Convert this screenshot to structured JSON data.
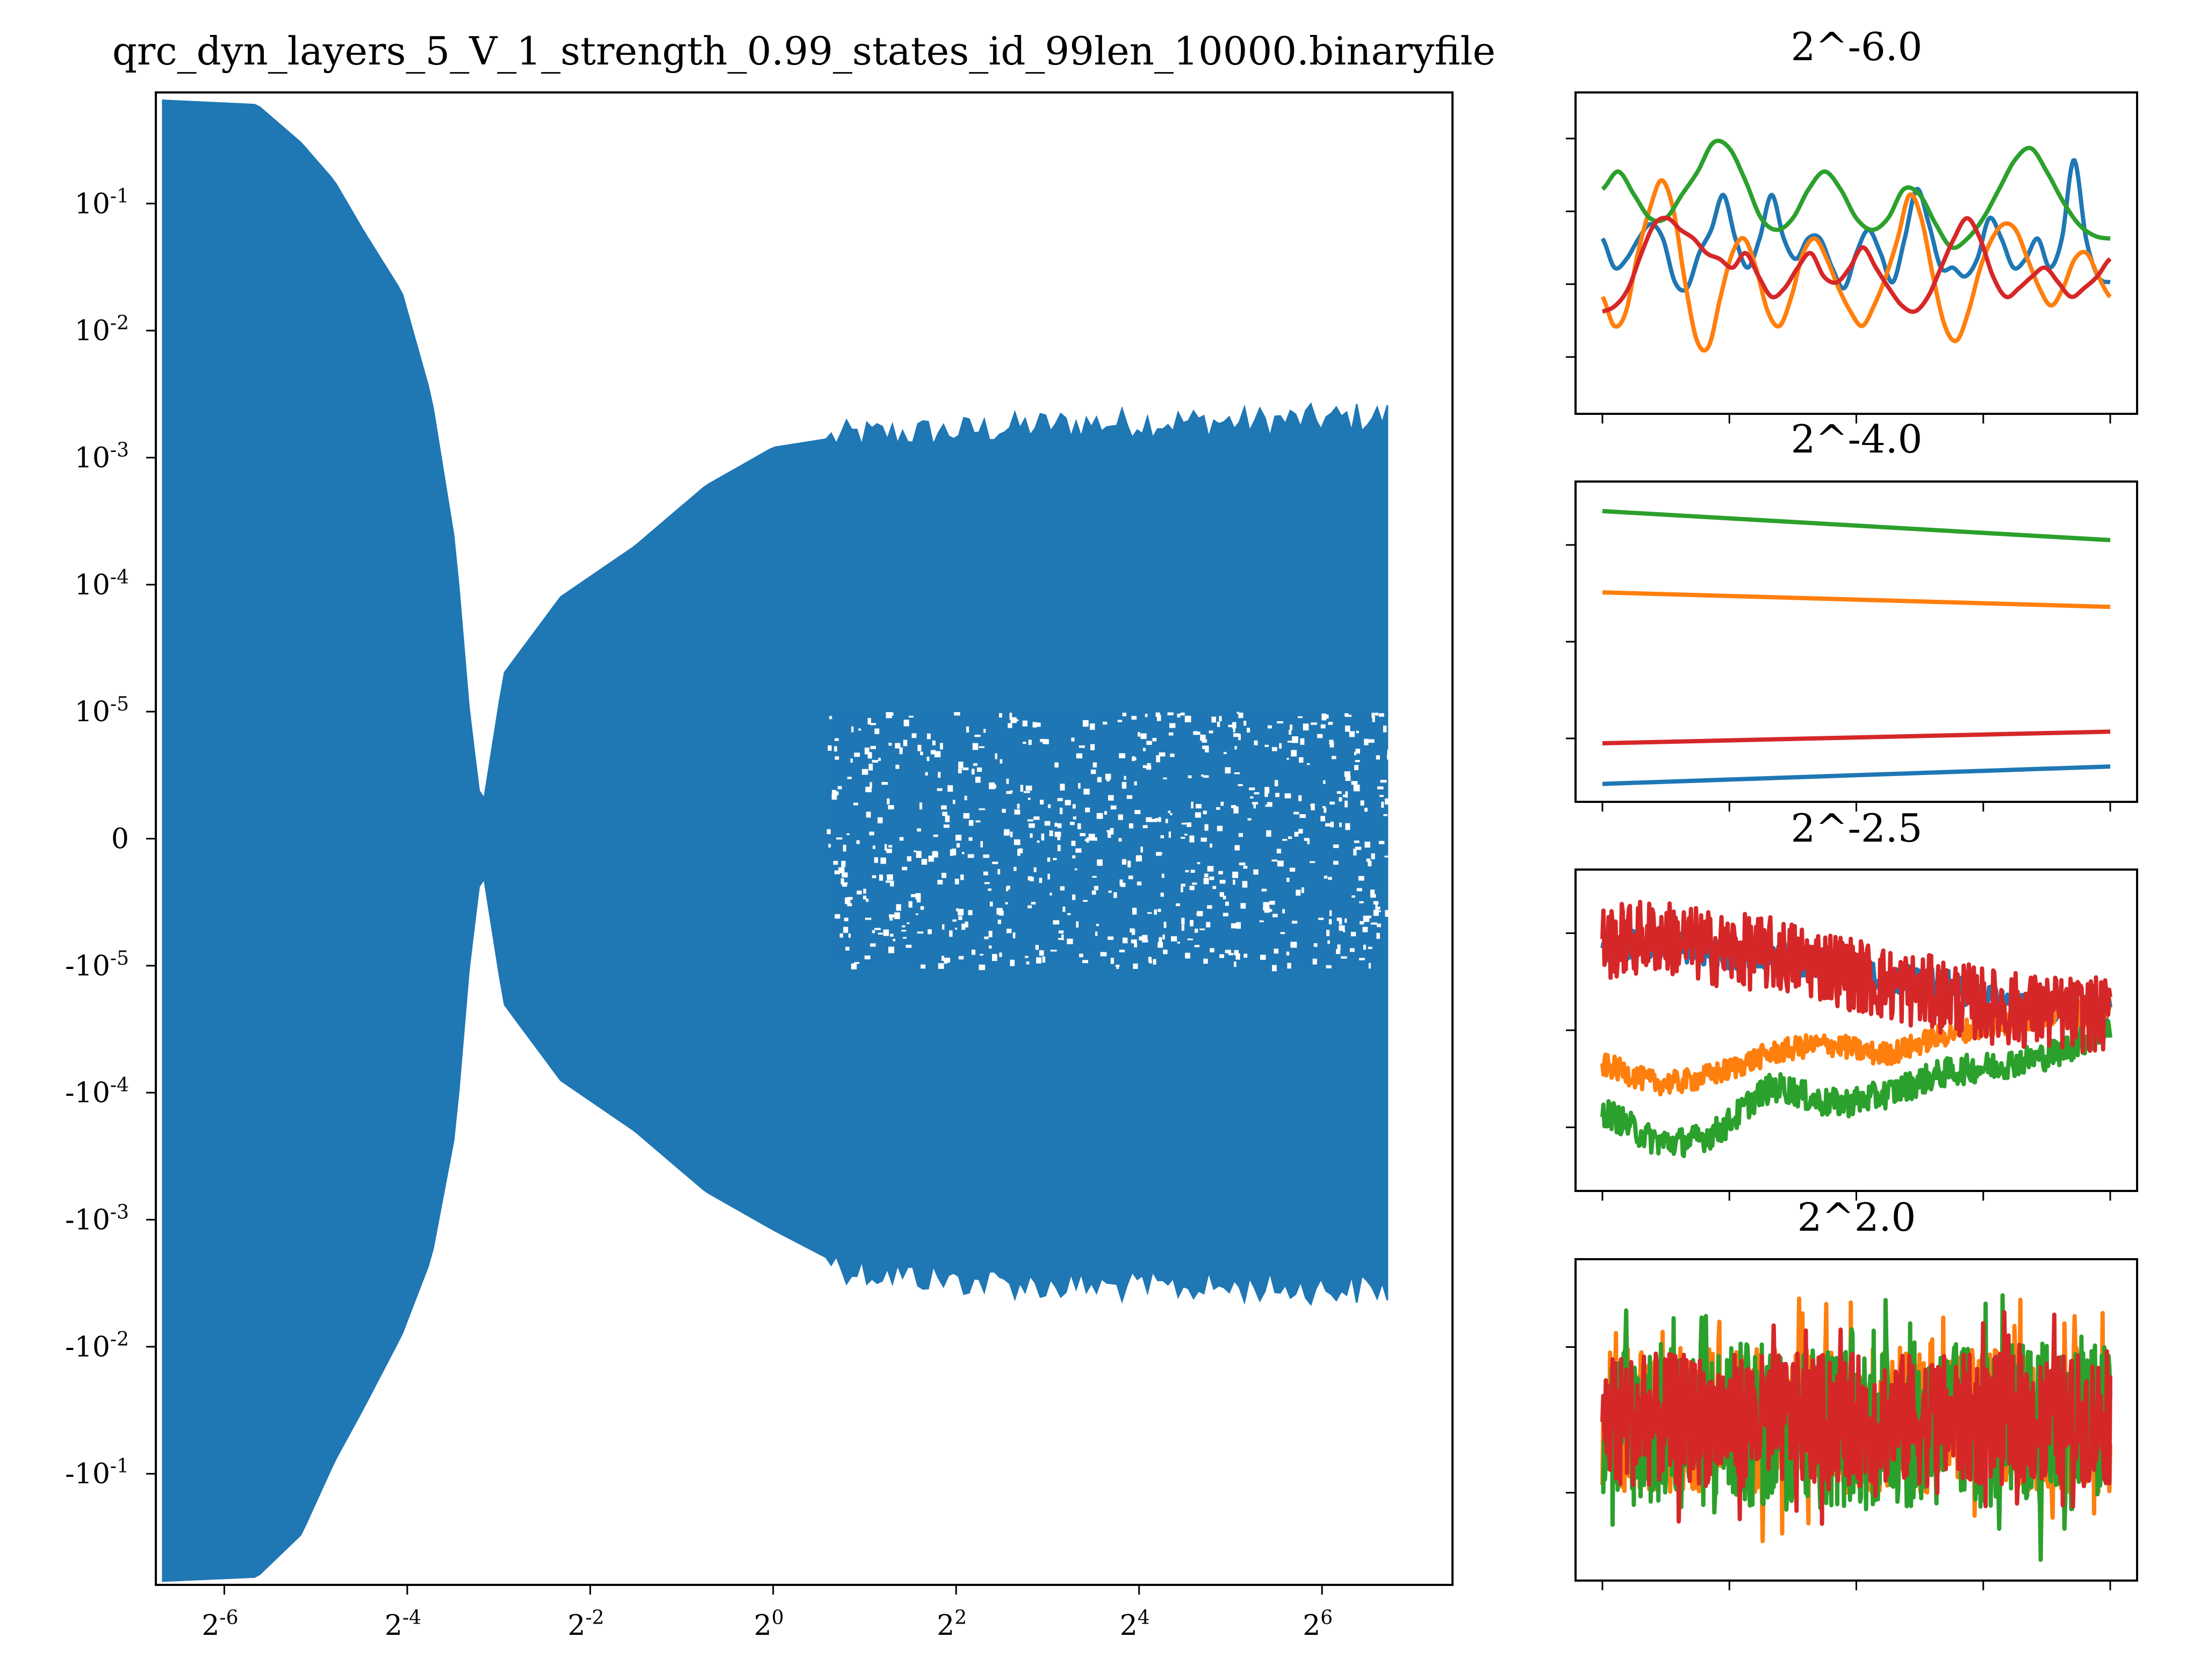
{
  "colors": {
    "blue": "#1f77b4",
    "orange": "#ff7f0e",
    "green": "#2ca02c",
    "red": "#d62728",
    "axes": "#000000",
    "background": "#ffffff"
  },
  "chart_data": [
    {
      "id": "main",
      "type": "scatter",
      "title": "qrc_dyn_layers_5_V_1_strength_0.99_states_id_99len_10000.binaryfile",
      "xlabel": "",
      "ylabel": "",
      "xscale": "log2",
      "yscale": "symlog",
      "x_ticks": [
        {
          "base": "2",
          "exp": "-6",
          "value": 0.015625
        },
        {
          "base": "2",
          "exp": "-4",
          "value": 0.0625
        },
        {
          "base": "2",
          "exp": "-2",
          "value": 0.25
        },
        {
          "base": "2",
          "exp": "0",
          "value": 1
        },
        {
          "base": "2",
          "exp": "2",
          "value": 4
        },
        {
          "base": "2",
          "exp": "4",
          "value": 16
        },
        {
          "base": "2",
          "exp": "6",
          "value": 64
        }
      ],
      "y_ticks": [
        {
          "base": "10",
          "exp": "-1",
          "value": 0.1
        },
        {
          "base": "10",
          "exp": "-2",
          "value": 0.01
        },
        {
          "base": "10",
          "exp": "-3",
          "value": 0.001
        },
        {
          "base": "10",
          "exp": "-4",
          "value": 0.0001
        },
        {
          "base": "10",
          "exp": "-5",
          "value": 1e-05
        },
        {
          "base": "",
          "exp": "",
          "label": "0",
          "value": 0
        },
        {
          "base": "-10",
          "exp": "-5",
          "value": -1e-05
        },
        {
          "base": "-10",
          "exp": "-4",
          "value": -0.0001
        },
        {
          "base": "-10",
          "exp": "-3",
          "value": -0.001
        },
        {
          "base": "-10",
          "exp": "-2",
          "value": -0.01
        },
        {
          "base": "-10",
          "exp": "-1",
          "value": -0.1
        }
      ],
      "xlim": [
        0.0093,
        172
      ],
      "ylim": [
        -0.75,
        0.75
      ],
      "series": [
        {
          "color": "blue",
          "envelope_upper": [
            [
              0.0098,
              0.65
            ],
            [
              0.02,
              0.6
            ],
            [
              0.028,
              0.3
            ],
            [
              0.036,
              0.15
            ],
            [
              0.045,
              0.06
            ],
            [
              0.06,
              0.02
            ],
            [
              0.075,
              0.003
            ],
            [
              0.09,
              0.0002
            ],
            [
              0.1,
              1e-05
            ],
            [
              0.11,
              2e-06
            ],
            [
              0.13,
              2e-05
            ],
            [
              0.2,
              8e-05
            ],
            [
              0.35,
              0.0002
            ],
            [
              0.6,
              0.0006
            ],
            [
              1.0,
              0.0012
            ],
            [
              1.8,
              0.0015
            ],
            [
              4,
              0.0016
            ],
            [
              8,
              0.0018
            ],
            [
              16,
              0.0019
            ],
            [
              32,
              0.0019
            ],
            [
              64,
              0.002
            ],
            [
              105,
              0.0021
            ]
          ],
          "envelope_lower": [
            [
              0.0098,
              -0.7
            ],
            [
              0.02,
              -0.65
            ],
            [
              0.028,
              -0.3
            ],
            [
              0.036,
              -0.08
            ],
            [
              0.045,
              -0.03
            ],
            [
              0.06,
              -0.008
            ],
            [
              0.075,
              -0.002
            ],
            [
              0.09,
              -0.0002
            ],
            [
              0.1,
              -1e-05
            ],
            [
              0.11,
              -2e-06
            ],
            [
              0.13,
              -2e-05
            ],
            [
              0.2,
              -8e-05
            ],
            [
              0.35,
              -0.0002
            ],
            [
              0.6,
              -0.0006
            ],
            [
              1.0,
              -0.0012
            ],
            [
              1.8,
              -0.0025
            ],
            [
              4,
              -0.003
            ],
            [
              8,
              -0.0033
            ],
            [
              16,
              -0.0034
            ],
            [
              32,
              -0.0034
            ],
            [
              64,
              -0.0035
            ],
            [
              105,
              -0.0035
            ]
          ],
          "inner_gap": {
            "x_from": 1.5,
            "x_to": 105,
            "y_range": [
              -1e-05,
              1e-05
            ]
          }
        }
      ]
    },
    {
      "id": "panel1",
      "type": "line",
      "title": "2^-6.0",
      "xlabel": "",
      "ylabel": "",
      "series": [
        {
          "color": "blue",
          "values": [
            0.55,
            0.45,
            0.48,
            0.55,
            0.6,
            0.55,
            0.4,
            0.38,
            0.5,
            0.58,
            0.7,
            0.55,
            0.45,
            0.55,
            0.7,
            0.55,
            0.48,
            0.55,
            0.55,
            0.45,
            0.38,
            0.5,
            0.58,
            0.5,
            0.4,
            0.55,
            0.72,
            0.6,
            0.45,
            0.45,
            0.42,
            0.48,
            0.62,
            0.55,
            0.45,
            0.48,
            0.55,
            0.45,
            0.55,
            0.82,
            0.55,
            0.42,
            0.4
          ]
        },
        {
          "color": "orange",
          "values": [
            0.35,
            0.25,
            0.3,
            0.5,
            0.65,
            0.75,
            0.65,
            0.4,
            0.2,
            0.18,
            0.35,
            0.5,
            0.55,
            0.45,
            0.3,
            0.25,
            0.35,
            0.5,
            0.55,
            0.48,
            0.38,
            0.3,
            0.25,
            0.32,
            0.42,
            0.55,
            0.7,
            0.62,
            0.42,
            0.25,
            0.2,
            0.3,
            0.45,
            0.55,
            0.6,
            0.58,
            0.48,
            0.38,
            0.32,
            0.38,
            0.48,
            0.5,
            0.42,
            0.35
          ]
        },
        {
          "color": "green",
          "values": [
            0.72,
            0.78,
            0.7,
            0.62,
            0.62,
            0.7,
            0.78,
            0.88,
            0.86,
            0.75,
            0.62,
            0.58,
            0.62,
            0.72,
            0.78,
            0.72,
            0.62,
            0.58,
            0.62,
            0.72,
            0.7,
            0.6,
            0.52,
            0.55,
            0.62,
            0.72,
            0.82,
            0.86,
            0.78,
            0.68,
            0.6,
            0.56,
            0.55
          ]
        },
        {
          "color": "red",
          "values": [
            0.3,
            0.32,
            0.38,
            0.5,
            0.6,
            0.62,
            0.58,
            0.55,
            0.5,
            0.48,
            0.45,
            0.5,
            0.42,
            0.35,
            0.38,
            0.45,
            0.5,
            0.42,
            0.4,
            0.45,
            0.52,
            0.45,
            0.38,
            0.32,
            0.3,
            0.35,
            0.45,
            0.55,
            0.62,
            0.55,
            0.42,
            0.35,
            0.38,
            0.42,
            0.45,
            0.4,
            0.35,
            0.38,
            0.42,
            0.48
          ]
        }
      ]
    },
    {
      "id": "panel2",
      "type": "line",
      "title": "2^-4.0",
      "xlabel": "",
      "ylabel": "",
      "series": [
        {
          "color": "green",
          "values": [
            0.95,
            0.85
          ]
        },
        {
          "color": "orange",
          "values": [
            0.67,
            0.62
          ]
        },
        {
          "color": "red",
          "values": [
            0.15,
            0.19
          ]
        },
        {
          "color": "blue",
          "values": [
            0.01,
            0.07
          ]
        }
      ]
    },
    {
      "id": "panel3",
      "type": "line",
      "title": "2^-2.5",
      "xlabel": "",
      "ylabel": "",
      "series": [
        {
          "color": "blue",
          "trend": [
            0.78,
            0.8,
            0.76,
            0.76,
            0.7,
            0.68,
            0.66,
            0.6,
            0.58,
            0.56
          ],
          "noise": 0.05
        },
        {
          "color": "orange",
          "trend": [
            0.38,
            0.32,
            0.35,
            0.42,
            0.45,
            0.42,
            0.48,
            0.52,
            0.55,
            0.56
          ],
          "noise": 0.04
        },
        {
          "color": "green",
          "trend": [
            0.22,
            0.12,
            0.15,
            0.3,
            0.25,
            0.28,
            0.35,
            0.38,
            0.42,
            0.5
          ],
          "noise": 0.05
        },
        {
          "color": "red",
          "trend": [
            0.8,
            0.82,
            0.78,
            0.76,
            0.72,
            0.66,
            0.62,
            0.58,
            0.56,
            0.55
          ],
          "noise": 0.13
        }
      ]
    },
    {
      "id": "panel4",
      "type": "line",
      "title": "2^2.0",
      "xlabel": "",
      "ylabel": "",
      "series": [
        {
          "color": "orange",
          "center": 0.5,
          "noise": 0.42
        },
        {
          "color": "green",
          "center": 0.48,
          "noise": 0.48
        },
        {
          "color": "red",
          "center": 0.5,
          "noise": 0.38
        }
      ]
    }
  ]
}
